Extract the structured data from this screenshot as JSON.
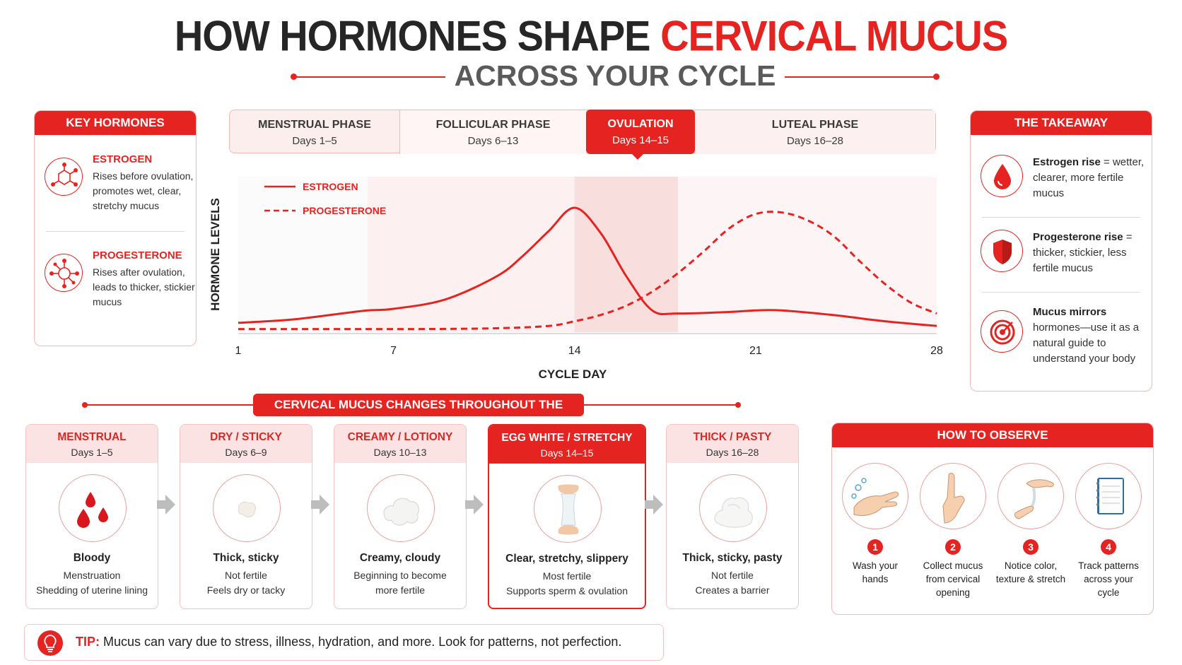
{
  "header": {
    "title_part1": "HOW HORMONES SHAPE",
    "title_part2": "CERVICAL MUCUS",
    "subtitle": "ACROSS YOUR CYCLE"
  },
  "key_hormones": {
    "title": "KEY HORMONES",
    "items": [
      {
        "name": "ESTROGEN",
        "desc": "Rises before ovulation, promotes wet, clear, stretchy mucus",
        "icon": "estrogen-molecule-icon"
      },
      {
        "name": "PROGESTERONE",
        "desc": "Rises after ovulation, leads to thicker, stickier mucus",
        "icon": "progesterone-molecule-icon"
      }
    ]
  },
  "phases": [
    {
      "name": "MENSTRUAL PHASE",
      "days": "Days 1–5"
    },
    {
      "name": "FOLLICULAR PHASE",
      "days": "Days 6–13"
    },
    {
      "name": "OVULATION",
      "days": "Days 14–15"
    },
    {
      "name": "LUTEAL PHASE",
      "days": "Days 16–28"
    }
  ],
  "chart_data": {
    "type": "line",
    "title": "",
    "xlabel": "CYCLE DAY",
    "ylabel": "HORMONE LEVELS",
    "xlim": [
      1,
      28
    ],
    "x_ticks": [
      1,
      7,
      14,
      21,
      28
    ],
    "legend": "top-left",
    "grid": false,
    "series": [
      {
        "name": "ESTROGEN",
        "style": "solid",
        "color": "#e52421",
        "x": [
          1,
          3,
          5,
          6,
          7,
          9,
          11,
          12,
          13,
          14,
          15,
          16,
          17,
          18,
          20,
          21,
          22,
          24,
          26,
          28
        ],
        "y": [
          6,
          8,
          12,
          14,
          15,
          21,
          36,
          49,
          65,
          80,
          64,
          36,
          14,
          12,
          13,
          14,
          14,
          11,
          7,
          4
        ]
      },
      {
        "name": "PROGESTERONE",
        "style": "dashed",
        "color": "#e52421",
        "x": [
          1,
          5,
          8,
          11,
          13,
          14,
          15,
          16,
          17,
          18,
          19,
          20,
          21,
          22,
          23,
          24,
          25,
          26,
          27,
          28
        ],
        "y": [
          2,
          2,
          2,
          2.5,
          4,
          7,
          11,
          17,
          26,
          38,
          52,
          67,
          76,
          77,
          72,
          62,
          46,
          31,
          19,
          12
        ]
      }
    ]
  },
  "takeaway": {
    "title": "THE TAKEAWAY",
    "items": [
      {
        "bold": "Estrogen rise",
        "rest": " = wetter, clearer, more fertile mucus",
        "icon": "water-drop-icon"
      },
      {
        "bold": "Progesterone rise",
        "rest": " = thicker, stickier, less fertile mucus",
        "icon": "shield-icon"
      },
      {
        "bold": "Mucus mirrors",
        "rest": " hormones—use it as a natural guide to understand your body",
        "icon": "target-icon"
      }
    ]
  },
  "mucus_section_title": "CERVICAL MUCUS CHANGES THROUGHOUT THE CYCLE",
  "mucus_stages": [
    {
      "name": "MENSTRUAL",
      "days": "Days 1–5",
      "type": "Bloody",
      "line1": "Menstruation",
      "line2": "Shedding of uterine lining",
      "icon": "blood-drops-icon"
    },
    {
      "name": "DRY / STICKY",
      "days": "Days 6–9",
      "type": "Thick, sticky",
      "line1": "Not fertile",
      "line2": "Feels dry or tacky",
      "icon": "sticky-dot-icon"
    },
    {
      "name": "CREAMY / LOTIONY",
      "days": "Days 10–13",
      "type": "Creamy, cloudy",
      "line1": "Beginning to become",
      "line2": "more fertile",
      "icon": "creamy-blob-icon"
    },
    {
      "name": "EGG WHITE / STRETCHY",
      "days": "Days 14–15",
      "type": "Clear, stretchy, slippery",
      "line1": "Most fertile",
      "line2": "Supports sperm & ovulation",
      "icon": "stretchy-fingers-icon"
    },
    {
      "name": "THICK / PASTY",
      "days": "Days 16–28",
      "type": "Thick, sticky, pasty",
      "line1": "Not fertile",
      "line2": "Creates a barrier",
      "icon": "pasty-blob-icon"
    }
  ],
  "observe": {
    "title": "HOW TO OBSERVE",
    "steps": [
      {
        "num": "1",
        "text": "Wash your hands",
        "icon": "hand-wash-icon"
      },
      {
        "num": "2",
        "text": "Collect mucus from cervical opening",
        "icon": "finger-icon"
      },
      {
        "num": "3",
        "text": "Notice color, texture & stretch",
        "icon": "stretch-test-icon"
      },
      {
        "num": "4",
        "text": "Track patterns across your cycle",
        "icon": "notebook-icon"
      }
    ]
  },
  "tip": {
    "label": "TIP:",
    "text": " Mucus can vary due to stress, illness, hydration, and more. Look for patterns, not perfection."
  }
}
